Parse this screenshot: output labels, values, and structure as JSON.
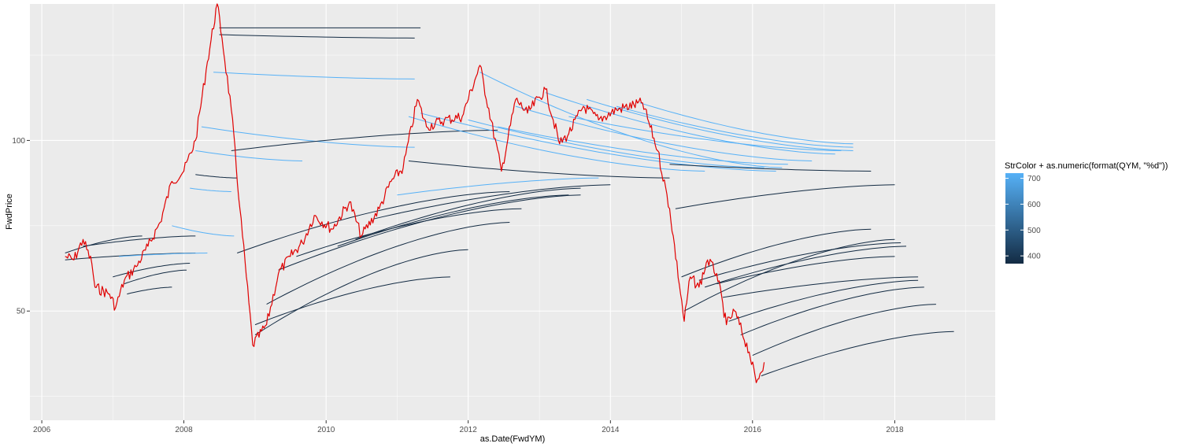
{
  "chart_data": {
    "type": "line",
    "xlabel": "as.Date(FwdYM)",
    "ylabel": "FwdPrice",
    "x_axis_type": "date",
    "x_ticks": [
      "2006",
      "2008",
      "2010",
      "2012",
      "2014",
      "2016",
      "2018"
    ],
    "y_ticks": [
      50,
      100
    ],
    "xlim": [
      "2005-11-01",
      "2019-06-01"
    ],
    "ylim": [
      18,
      140
    ],
    "grid": true,
    "background": "#ebebeb",
    "legend": {
      "title": "StrColor + as.numeric(format(QYM, \"%d\"))",
      "placement": "right",
      "type": "colorbar",
      "range": [
        370,
        720
      ],
      "breaks": [
        400,
        500,
        600,
        700
      ],
      "low_color": "#132b43",
      "high_color": "#56b1f7"
    },
    "spot_series": {
      "color": "#e00000",
      "points": [
        [
          "2006-05-01",
          66
        ],
        [
          "2006-06-15",
          65
        ],
        [
          "2006-08-01",
          71
        ],
        [
          "2006-09-15",
          64
        ],
        [
          "2006-10-01",
          57
        ],
        [
          "2006-12-15",
          55
        ],
        [
          "2007-01-15",
          51
        ],
        [
          "2007-03-01",
          59
        ],
        [
          "2007-05-01",
          63
        ],
        [
          "2007-07-01",
          69
        ],
        [
          "2007-09-01",
          76
        ],
        [
          "2007-11-01",
          88
        ],
        [
          "2008-01-01",
          91
        ],
        [
          "2008-03-01",
          100
        ],
        [
          "2008-05-01",
          123
        ],
        [
          "2008-06-20",
          140
        ],
        [
          "2008-07-15",
          130
        ],
        [
          "2008-09-01",
          109
        ],
        [
          "2008-10-15",
          80
        ],
        [
          "2008-12-20",
          40
        ],
        [
          "2009-03-01",
          46
        ],
        [
          "2009-05-01",
          61
        ],
        [
          "2009-07-01",
          66
        ],
        [
          "2009-09-01",
          70
        ],
        [
          "2009-11-01",
          78
        ],
        [
          "2010-02-01",
          74
        ],
        [
          "2010-05-01",
          82
        ],
        [
          "2010-07-01",
          72
        ],
        [
          "2010-10-01",
          80
        ],
        [
          "2010-12-01",
          88
        ],
        [
          "2011-02-01",
          92
        ],
        [
          "2011-04-15",
          112
        ],
        [
          "2011-06-01",
          104
        ],
        [
          "2011-09-01",
          106
        ],
        [
          "2011-12-01",
          107
        ],
        [
          "2012-03-01",
          122
        ],
        [
          "2012-06-20",
          91
        ],
        [
          "2012-09-01",
          112
        ],
        [
          "2012-11-01",
          108
        ],
        [
          "2013-02-01",
          115
        ],
        [
          "2013-04-15",
          99
        ],
        [
          "2013-06-01",
          102
        ],
        [
          "2013-08-15",
          110
        ],
        [
          "2013-11-01",
          106
        ],
        [
          "2014-02-01",
          109
        ],
        [
          "2014-06-15",
          111
        ],
        [
          "2014-09-01",
          97
        ],
        [
          "2014-11-01",
          80
        ],
        [
          "2015-01-15",
          47
        ],
        [
          "2015-02-15",
          60
        ],
        [
          "2015-04-01",
          57
        ],
        [
          "2015-05-15",
          65
        ],
        [
          "2015-07-01",
          61
        ],
        [
          "2015-08-20",
          46
        ],
        [
          "2015-10-01",
          50
        ],
        [
          "2015-12-15",
          38
        ],
        [
          "2016-01-20",
          29
        ],
        [
          "2016-03-01",
          35
        ]
      ]
    },
    "forward_curves": [
      {
        "color": "#132b43",
        "points": [
          [
            "2006-05-01",
            65
          ],
          [
            "2008-03-01",
            67
          ]
        ]
      },
      {
        "color": "#132b43",
        "points": [
          [
            "2006-05-01",
            67
          ],
          [
            "2007-06-01",
            72
          ]
        ]
      },
      {
        "color": "#132b43",
        "points": [
          [
            "2006-08-01",
            69
          ],
          [
            "2008-03-01",
            72
          ]
        ]
      },
      {
        "color": "#56b1f7",
        "points": [
          [
            "2007-02-01",
            66
          ],
          [
            "2008-05-01",
            67
          ]
        ]
      },
      {
        "color": "#132b43",
        "points": [
          [
            "2007-01-01",
            60
          ],
          [
            "2008-02-01",
            64
          ]
        ]
      },
      {
        "color": "#132b43",
        "points": [
          [
            "2007-03-01",
            58
          ],
          [
            "2008-01-15",
            62
          ]
        ]
      },
      {
        "color": "#132b43",
        "points": [
          [
            "2007-03-15",
            55
          ],
          [
            "2007-11-01",
            57
          ]
        ]
      },
      {
        "color": "#56b1f7",
        "points": [
          [
            "2007-11-01",
            75
          ],
          [
            "2008-09-15",
            72
          ]
        ]
      },
      {
        "color": "#56b1f7",
        "points": [
          [
            "2008-02-01",
            86
          ],
          [
            "2008-09-01",
            85
          ]
        ]
      },
      {
        "color": "#132b43",
        "points": [
          [
            "2008-03-01",
            90
          ],
          [
            "2008-10-01",
            89
          ]
        ]
      },
      {
        "color": "#56b1f7",
        "points": [
          [
            "2008-03-01",
            97
          ],
          [
            "2009-09-01",
            94
          ]
        ]
      },
      {
        "color": "#56b1f7",
        "points": [
          [
            "2008-04-01",
            104
          ],
          [
            "2011-04-01",
            98
          ]
        ]
      },
      {
        "color": "#56b1f7",
        "points": [
          [
            "2008-06-01",
            120
          ],
          [
            "2011-04-01",
            118
          ]
        ]
      },
      {
        "color": "#132b43",
        "points": [
          [
            "2008-07-01",
            131
          ],
          [
            "2011-04-01",
            130
          ]
        ]
      },
      {
        "color": "#132b43",
        "points": [
          [
            "2008-07-01",
            133
          ],
          [
            "2011-05-01",
            133
          ]
        ]
      },
      {
        "color": "#132b43",
        "points": [
          [
            "2008-09-01",
            97
          ],
          [
            "2012-06-01",
            103
          ]
        ]
      },
      {
        "color": "#132b43",
        "points": [
          [
            "2008-10-01",
            67
          ],
          [
            "2012-08-01",
            85
          ]
        ]
      },
      {
        "color": "#132b43",
        "points": [
          [
            "2009-01-01",
            43
          ],
          [
            "2012-01-01",
            68
          ]
        ]
      },
      {
        "color": "#132b43",
        "points": [
          [
            "2009-01-01",
            46
          ],
          [
            "2011-10-01",
            60
          ]
        ]
      },
      {
        "color": "#132b43",
        "points": [
          [
            "2009-03-01",
            52
          ],
          [
            "2012-08-01",
            76
          ]
        ]
      },
      {
        "color": "#132b43",
        "points": [
          [
            "2009-05-01",
            62
          ],
          [
            "2013-08-01",
            84
          ]
        ]
      },
      {
        "color": "#132b43",
        "points": [
          [
            "2009-08-01",
            66
          ],
          [
            "2012-10-01",
            80
          ]
        ]
      },
      {
        "color": "#132b43",
        "points": [
          [
            "2010-03-01",
            69
          ],
          [
            "2013-06-01",
            84
          ]
        ]
      },
      {
        "color": "#132b43",
        "points": [
          [
            "2010-06-01",
            71
          ],
          [
            "2013-08-01",
            86
          ]
        ]
      },
      {
        "color": "#132b43",
        "points": [
          [
            "2010-09-01",
            77
          ],
          [
            "2014-01-01",
            87
          ]
        ]
      },
      {
        "color": "#56b1f7",
        "points": [
          [
            "2011-01-01",
            84
          ],
          [
            "2013-11-01",
            89
          ]
        ]
      },
      {
        "color": "#132b43",
        "points": [
          [
            "2011-03-01",
            94
          ],
          [
            "2014-11-01",
            89
          ]
        ]
      },
      {
        "color": "#56b1f7",
        "points": [
          [
            "2011-03-01",
            107
          ],
          [
            "2015-05-01",
            91
          ]
        ]
      },
      {
        "color": "#56b1f7",
        "points": [
          [
            "2011-05-01",
            108
          ],
          [
            "2016-05-01",
            91
          ]
        ]
      },
      {
        "color": "#56b1f7",
        "points": [
          [
            "2012-01-01",
            106
          ],
          [
            "2016-03-01",
            92
          ]
        ]
      },
      {
        "color": "#56b1f7",
        "points": [
          [
            "2012-03-01",
            120
          ],
          [
            "2016-06-01",
            92
          ]
        ]
      },
      {
        "color": "#56b1f7",
        "points": [
          [
            "2012-06-01",
            104
          ],
          [
            "2016-07-01",
            93
          ]
        ]
      },
      {
        "color": "#56b1f7",
        "points": [
          [
            "2012-09-01",
            110
          ],
          [
            "2016-11-01",
            94
          ]
        ]
      },
      {
        "color": "#56b1f7",
        "points": [
          [
            "2013-02-01",
            114
          ],
          [
            "2017-03-01",
            96
          ]
        ]
      },
      {
        "color": "#56b1f7",
        "points": [
          [
            "2013-06-01",
            107
          ],
          [
            "2017-04-01",
            97
          ]
        ]
      },
      {
        "color": "#56b1f7",
        "points": [
          [
            "2013-09-01",
            112
          ],
          [
            "2017-06-01",
            97
          ]
        ]
      },
      {
        "color": "#56b1f7",
        "points": [
          [
            "2014-02-01",
            110
          ],
          [
            "2017-06-01",
            98
          ]
        ]
      },
      {
        "color": "#56b1f7",
        "points": [
          [
            "2014-06-01",
            111
          ],
          [
            "2017-06-01",
            99
          ]
        ]
      },
      {
        "color": "#132b43",
        "points": [
          [
            "2014-11-01",
            93
          ],
          [
            "2017-09-01",
            91
          ]
        ]
      },
      {
        "color": "#132b43",
        "points": [
          [
            "2014-12-01",
            80
          ],
          [
            "2018-01-01",
            87
          ]
        ]
      },
      {
        "color": "#132b43",
        "points": [
          [
            "2015-01-01",
            60
          ],
          [
            "2017-09-01",
            74
          ]
        ]
      },
      {
        "color": "#132b43",
        "points": [
          [
            "2015-01-15",
            50
          ],
          [
            "2018-01-01",
            71
          ]
        ]
      },
      {
        "color": "#132b43",
        "points": [
          [
            "2015-04-01",
            59
          ],
          [
            "2018-02-01",
            70
          ]
        ]
      },
      {
        "color": "#132b43",
        "points": [
          [
            "2015-05-01",
            57
          ],
          [
            "2018-03-01",
            69
          ]
        ]
      },
      {
        "color": "#132b43",
        "points": [
          [
            "2015-07-01",
            58
          ],
          [
            "2018-01-01",
            66
          ]
        ]
      },
      {
        "color": "#132b43",
        "points": [
          [
            "2015-08-01",
            54
          ],
          [
            "2018-05-01",
            60
          ]
        ]
      },
      {
        "color": "#132b43",
        "points": [
          [
            "2015-09-01",
            47
          ],
          [
            "2018-05-01",
            59
          ]
        ]
      },
      {
        "color": "#132b43",
        "points": [
          [
            "2015-11-01",
            43
          ],
          [
            "2018-06-01",
            57
          ]
        ]
      },
      {
        "color": "#132b43",
        "points": [
          [
            "2016-01-01",
            37
          ],
          [
            "2018-08-01",
            52
          ]
        ]
      },
      {
        "color": "#132b43",
        "points": [
          [
            "2016-02-15",
            31
          ],
          [
            "2018-11-01",
            44
          ]
        ]
      }
    ]
  }
}
